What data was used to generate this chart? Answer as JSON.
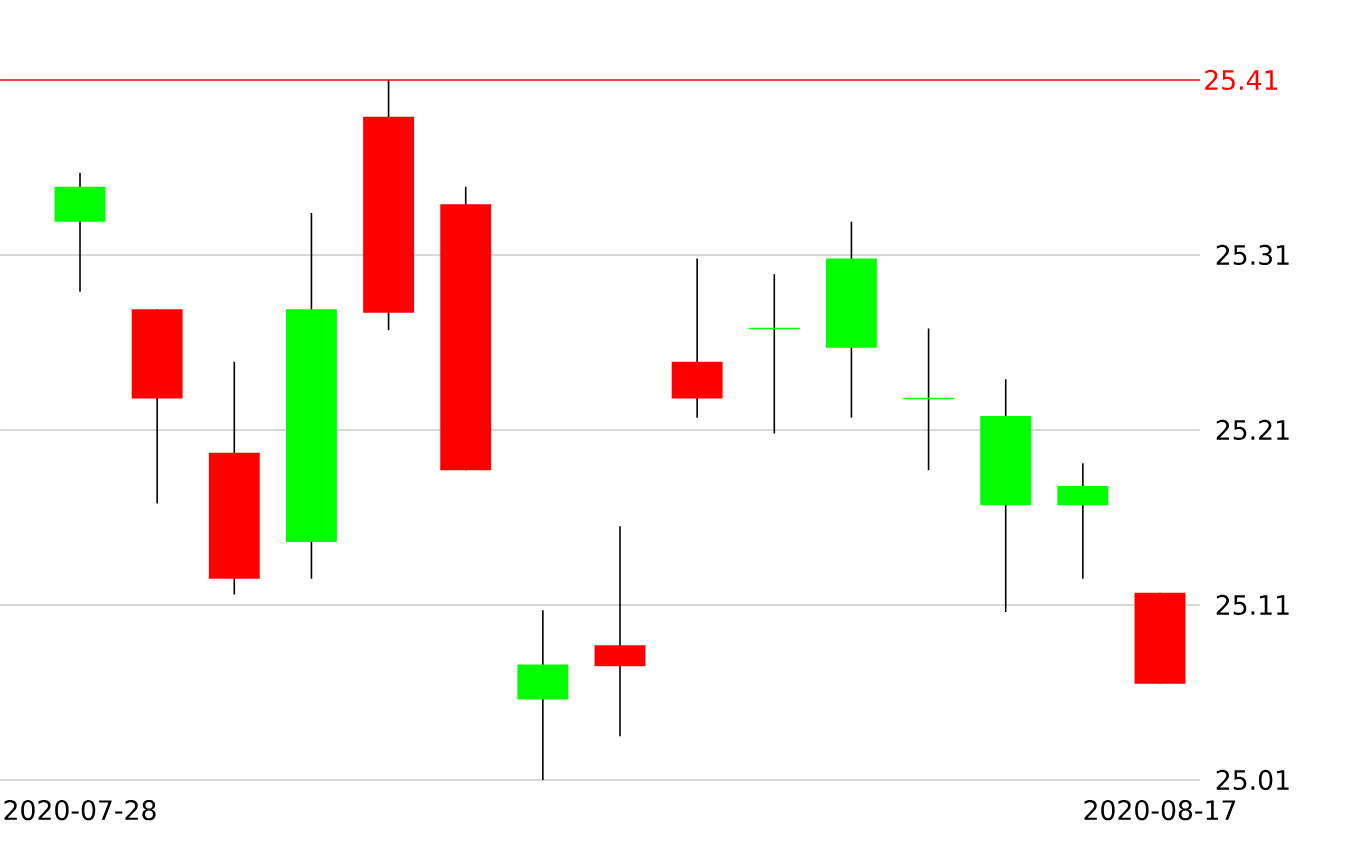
{
  "chart_data": {
    "type": "candlestick",
    "categories": [
      "2020-07-28",
      null,
      null,
      null,
      null,
      null,
      null,
      null,
      null,
      null,
      null,
      null,
      null,
      null,
      "2020-08-17"
    ],
    "ohlc": [
      [
        25.329,
        25.357,
        25.289,
        25.349
      ],
      [
        25.279,
        25.279,
        25.168,
        25.228
      ],
      [
        25.197,
        25.249,
        25.116,
        25.125
      ],
      [
        25.146,
        25.334,
        25.125,
        25.279
      ],
      [
        25.389,
        25.41,
        25.267,
        25.277
      ],
      [
        25.339,
        25.349,
        25.187,
        25.187
      ],
      [
        25.056,
        25.107,
        25.01,
        25.076
      ],
      [
        25.087,
        25.155,
        25.035,
        25.075
      ],
      [
        25.249,
        25.308,
        25.217,
        25.228
      ],
      [
        25.268,
        25.299,
        25.208,
        25.268
      ],
      [
        25.257,
        25.329,
        25.217,
        25.308
      ],
      [
        25.228,
        25.268,
        25.187,
        25.228
      ],
      [
        25.167,
        25.239,
        25.106,
        25.218
      ],
      [
        25.167,
        25.191,
        25.125,
        25.178
      ],
      [
        25.117,
        25.117,
        25.065,
        25.065
      ]
    ],
    "colors": [
      "#00ff00",
      "#ff0000",
      "#ff0000",
      "#00ff00",
      "#ff0000",
      "#ff0000",
      "#00ff00",
      "#ff0000",
      "#ff0000",
      "#00ff00",
      "#00ff00",
      "#00ff00",
      "#00ff00",
      "#00ff00",
      "#ff0000"
    ],
    "ylim": [
      25.01,
      25.41
    ],
    "yticks": [
      25.01,
      25.11,
      25.21,
      25.31
    ],
    "grid": "y",
    "ref_lines": [
      {
        "axis": "y",
        "value": 25.41,
        "label": "25.41",
        "color": "#ff0000"
      }
    ]
  }
}
